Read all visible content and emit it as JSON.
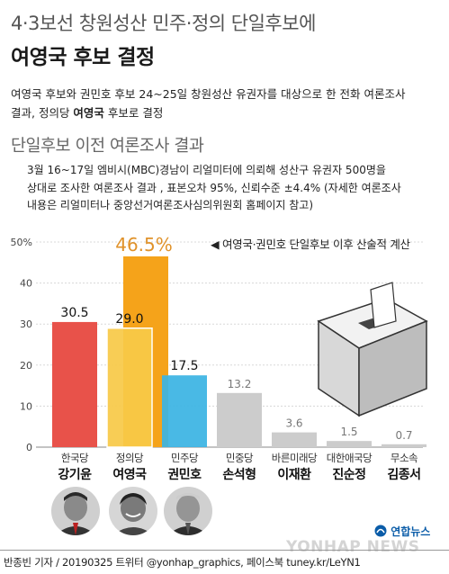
{
  "header": {
    "title_line1": "4·3보선 창원성산 민주·정의 단일후보에",
    "title_line2": "여영국 후보 결정"
  },
  "summary": {
    "line1": "여영국 후보와 권민호 후보 24~25일 창원성산 유권자를 대상으로 한 전화 여론조사",
    "line2_pre": "결과, 정의당 ",
    "line2_bold": "여영국",
    "line2_post": " 후보로 결정"
  },
  "section": {
    "title": "단일후보 이전 여론조사 결과",
    "note_lines": [
      "3월 16~17일 엠비시(MBC)경남이 리얼미터에 의뢰해 성산구 유권자 500명을",
      "상대로 조사한 여론조사 결과 , 표본오차 95%, 신뢰수준 ±4.4% (자세한 여론조사",
      "내용은 리얼미터나 중앙선거여론조사심의위원회 홈페이지 참고)"
    ]
  },
  "annotation": "◀ 여영국·권민호 단일후보 이후 산술적 계산",
  "chart_data": {
    "type": "bar",
    "ylim": [
      0,
      50
    ],
    "yticks": [
      0,
      10,
      20,
      30,
      40,
      50
    ],
    "ytick_labels": [
      "0",
      "10",
      "20",
      "30",
      "40",
      "50%"
    ],
    "categories": [
      {
        "party": "한국당",
        "name": "강기윤"
      },
      {
        "party": "정의당",
        "name": "여영국"
      },
      {
        "party": "민주당",
        "name": "권민호"
      },
      {
        "party": "민중당",
        "name": "손석형"
      },
      {
        "party": "바른미래당",
        "name": "이재환"
      },
      {
        "party": "대한애국당",
        "name": "진순정"
      },
      {
        "party": "무소속",
        "name": "김종서"
      }
    ],
    "values": [
      30.5,
      29.0,
      17.5,
      13.2,
      3.6,
      1.5,
      0.7
    ],
    "value_labels": [
      "30.5",
      "29.0",
      "17.5",
      "13.2",
      "3.6",
      "1.5",
      "0.7"
    ],
    "combined": {
      "value": 46.5,
      "label": "46.5%"
    },
    "colors": {
      "한국당": "#e8524a",
      "정의당": "#f7c948",
      "민주당": "#3bb4e3",
      "other": "#cccccc",
      "combined": "#f5a31a",
      "combined_label": "#e0922a"
    }
  },
  "footer": {
    "logo": "연합뉴스",
    "watermark": "YONHAP NEWS",
    "credit": "반종빈 기자 / 20190325 트위터 @yonhap_graphics, 페이스북 tuney.kr/LeYN1"
  }
}
